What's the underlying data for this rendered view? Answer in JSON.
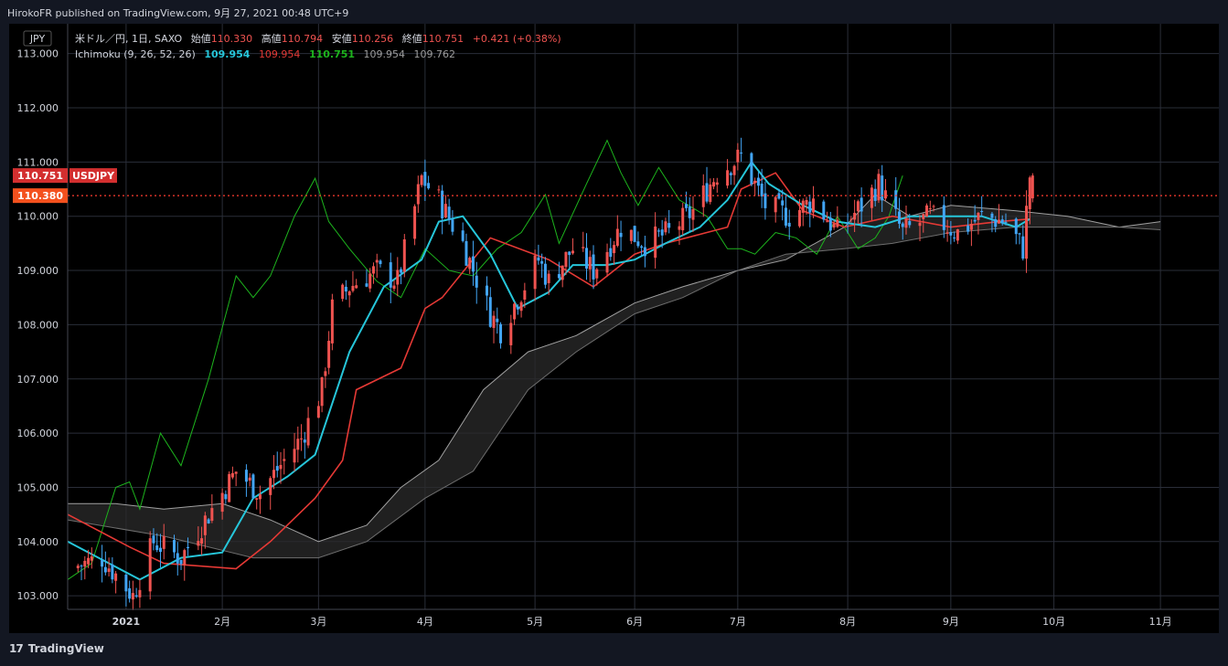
{
  "header": {
    "published": "HirokoFR published on TradingView.com, 9月 27, 2021 00:48 UTC+9"
  },
  "footer": {
    "brand": "TradingView",
    "logo": "17"
  },
  "legend": {
    "currency_button": "JPY",
    "line1": {
      "symbol": "米ドル／円, 1日, SAXO",
      "open_label": "始値",
      "open": "110.330",
      "high_label": "高値",
      "high": "110.794",
      "low_label": "安値",
      "low": "110.256",
      "close_label": "終値",
      "close": "110.751",
      "change": "+0.421 (+0.38%)"
    },
    "line2": {
      "name": "Ichimoku (9, 26, 52, 26)",
      "v1": "109.954",
      "v2": "109.954",
      "v3": "110.751",
      "v4": "109.954",
      "v5": "109.762"
    }
  },
  "price_tags": {
    "last": "110.751",
    "symbol": "USDJPY",
    "dotted": "110.380"
  },
  "colors": {
    "background": "#000000",
    "up": "#ef5350",
    "down": "#42a5f5",
    "tenkan": "#26c6da",
    "kijun": "#e53935",
    "chikou": "#1db41d",
    "span": "#8f8f8f",
    "cloud": "#3a3a3a",
    "grid": "#2a2e39",
    "dotted": "#ff3b30"
  },
  "chart_data": {
    "type": "candlestick",
    "title": "米ドル／円, 1日, SAXO",
    "y_ticks": [
      "103.000",
      "104.000",
      "105.000",
      "106.000",
      "107.000",
      "108.000",
      "109.000",
      "110.000",
      "111.000",
      "112.000",
      "113.000"
    ],
    "ylim": [
      102.75,
      113.55
    ],
    "x_ticks": [
      {
        "label": "2021",
        "date": "2021-01-04"
      },
      {
        "label": "2月",
        "date": "2021-02-01"
      },
      {
        "label": "3月",
        "date": "2021-03-01"
      },
      {
        "label": "4月",
        "date": "2021-04-01"
      },
      {
        "label": "5月",
        "date": "2021-05-03"
      },
      {
        "label": "6月",
        "date": "2021-06-01"
      },
      {
        "label": "7月",
        "date": "2021-07-01"
      },
      {
        "label": "8月",
        "date": "2021-08-02"
      },
      {
        "label": "9月",
        "date": "2021-09-01"
      },
      {
        "label": "10月",
        "date": "2021-10-01"
      },
      {
        "label": "11月",
        "date": "2021-11-01"
      }
    ],
    "xlim": [
      "2020-12-18",
      "2021-11-18"
    ],
    "price_anchors": [
      [
        "2020-12-18",
        103.5
      ],
      [
        "2020-12-28",
        103.7
      ],
      [
        "2021-01-06",
        103.0
      ],
      [
        "2021-01-12",
        104.0
      ],
      [
        "2021-01-20",
        103.7
      ],
      [
        "2021-01-29",
        104.6
      ],
      [
        "2021-02-05",
        105.3
      ],
      [
        "2021-02-12",
        104.9
      ],
      [
        "2021-02-19",
        105.5
      ],
      [
        "2021-02-24",
        105.9
      ],
      [
        "2021-03-02",
        106.8
      ],
      [
        "2021-03-05",
        108.3
      ],
      [
        "2021-03-10",
        108.7
      ],
      [
        "2021-03-18",
        109.0
      ],
      [
        "2021-03-24",
        108.8
      ],
      [
        "2021-03-31",
        110.7
      ],
      [
        "2021-04-05",
        110.3
      ],
      [
        "2021-04-12",
        109.5
      ],
      [
        "2021-04-20",
        108.2
      ],
      [
        "2021-04-23",
        107.9
      ],
      [
        "2021-05-04",
        109.2
      ],
      [
        "2021-05-07",
        108.8
      ],
      [
        "2021-05-14",
        109.4
      ],
      [
        "2021-05-20",
        109.0
      ],
      [
        "2021-05-28",
        109.8
      ],
      [
        "2021-06-04",
        109.5
      ],
      [
        "2021-06-11",
        109.7
      ],
      [
        "2021-06-18",
        110.1
      ],
      [
        "2021-06-25",
        110.8
      ],
      [
        "2021-07-02",
        111.1
      ],
      [
        "2021-07-09",
        110.2
      ],
      [
        "2021-07-16",
        110.0
      ],
      [
        "2021-07-23",
        110.3
      ],
      [
        "2021-07-30",
        109.7
      ],
      [
        "2021-08-06",
        110.2
      ],
      [
        "2021-08-11",
        110.6
      ],
      [
        "2021-08-18",
        109.7
      ],
      [
        "2021-08-26",
        110.0
      ],
      [
        "2021-09-03",
        109.7
      ],
      [
        "2021-09-10",
        110.0
      ],
      [
        "2021-09-17",
        109.9
      ],
      [
        "2021-09-22",
        109.4
      ],
      [
        "2021-09-24",
        110.75
      ]
    ],
    "tenkan": [
      [
        "2020-12-18",
        104.0
      ],
      [
        "2021-01-08",
        103.3
      ],
      [
        "2021-01-20",
        103.7
      ],
      [
        "2021-02-01",
        103.8
      ],
      [
        "2021-02-10",
        104.8
      ],
      [
        "2021-02-20",
        105.2
      ],
      [
        "2021-02-28",
        105.6
      ],
      [
        "2021-03-10",
        107.5
      ],
      [
        "2021-03-20",
        108.7
      ],
      [
        "2021-03-31",
        109.2
      ],
      [
        "2021-04-05",
        109.9
      ],
      [
        "2021-04-12",
        110.0
      ],
      [
        "2021-04-20",
        109.3
      ],
      [
        "2021-04-28",
        108.3
      ],
      [
        "2021-05-07",
        108.6
      ],
      [
        "2021-05-14",
        109.1
      ],
      [
        "2021-05-24",
        109.1
      ],
      [
        "2021-06-01",
        109.2
      ],
      [
        "2021-06-10",
        109.5
      ],
      [
        "2021-06-20",
        109.8
      ],
      [
        "2021-06-28",
        110.3
      ],
      [
        "2021-07-05",
        111.0
      ],
      [
        "2021-07-10",
        110.6
      ],
      [
        "2021-07-20",
        110.2
      ],
      [
        "2021-07-30",
        109.9
      ],
      [
        "2021-08-10",
        109.8
      ],
      [
        "2021-08-20",
        110.0
      ],
      [
        "2021-09-01",
        110.0
      ],
      [
        "2021-09-10",
        110.0
      ],
      [
        "2021-09-20",
        109.8
      ],
      [
        "2021-09-24",
        109.95
      ]
    ],
    "kijun": [
      [
        "2020-12-18",
        104.5
      ],
      [
        "2021-01-05",
        103.9
      ],
      [
        "2021-01-15",
        103.6
      ],
      [
        "2021-02-05",
        103.5
      ],
      [
        "2021-02-15",
        104.0
      ],
      [
        "2021-02-28",
        104.8
      ],
      [
        "2021-03-08",
        105.5
      ],
      [
        "2021-03-12",
        106.8
      ],
      [
        "2021-03-25",
        107.2
      ],
      [
        "2021-04-01",
        108.3
      ],
      [
        "2021-04-06",
        108.5
      ],
      [
        "2021-04-20",
        109.6
      ],
      [
        "2021-05-07",
        109.2
      ],
      [
        "2021-05-20",
        108.7
      ],
      [
        "2021-06-01",
        109.3
      ],
      [
        "2021-06-10",
        109.5
      ],
      [
        "2021-06-22",
        109.7
      ],
      [
        "2021-06-28",
        109.8
      ],
      [
        "2021-07-02",
        110.5
      ],
      [
        "2021-07-12",
        110.8
      ],
      [
        "2021-07-20",
        110.1
      ],
      [
        "2021-08-01",
        109.8
      ],
      [
        "2021-08-15",
        110.0
      ],
      [
        "2021-09-01",
        109.8
      ],
      [
        "2021-09-15",
        109.9
      ],
      [
        "2021-09-24",
        109.95
      ]
    ],
    "chikou": [
      [
        "2020-12-18",
        103.3
      ],
      [
        "2020-12-25",
        103.6
      ],
      [
        "2021-01-01",
        105.0
      ],
      [
        "2021-01-05",
        105.1
      ],
      [
        "2021-01-08",
        104.6
      ],
      [
        "2021-01-14",
        106.0
      ],
      [
        "2021-01-20",
        105.4
      ],
      [
        "2021-01-28",
        107.0
      ],
      [
        "2021-02-05",
        108.9
      ],
      [
        "2021-02-10",
        108.5
      ],
      [
        "2021-02-15",
        108.9
      ],
      [
        "2021-02-22",
        110.0
      ],
      [
        "2021-02-28",
        110.7
      ],
      [
        "2021-03-04",
        109.9
      ],
      [
        "2021-03-10",
        109.4
      ],
      [
        "2021-03-18",
        108.8
      ],
      [
        "2021-03-25",
        108.5
      ],
      [
        "2021-04-01",
        109.4
      ],
      [
        "2021-04-08",
        109.0
      ],
      [
        "2021-04-15",
        108.9
      ],
      [
        "2021-04-22",
        109.4
      ],
      [
        "2021-04-29",
        109.7
      ],
      [
        "2021-05-06",
        110.4
      ],
      [
        "2021-05-10",
        109.5
      ],
      [
        "2021-05-18",
        110.6
      ],
      [
        "2021-05-24",
        111.4
      ],
      [
        "2021-05-28",
        110.8
      ],
      [
        "2021-06-02",
        110.2
      ],
      [
        "2021-06-08",
        110.9
      ],
      [
        "2021-06-14",
        110.3
      ],
      [
        "2021-06-22",
        110.0
      ],
      [
        "2021-06-28",
        109.4
      ],
      [
        "2021-07-02",
        109.4
      ],
      [
        "2021-07-06",
        109.3
      ],
      [
        "2021-07-12",
        109.7
      ],
      [
        "2021-07-18",
        109.6
      ],
      [
        "2021-07-24",
        109.3
      ],
      [
        "2021-07-30",
        110.0
      ],
      [
        "2021-08-05",
        109.4
      ],
      [
        "2021-08-10",
        109.6
      ],
      [
        "2021-08-14",
        110.0
      ],
      [
        "2021-08-18",
        110.75
      ]
    ],
    "span_a": [
      [
        "2020-12-18",
        104.7
      ],
      [
        "2021-01-01",
        104.7
      ],
      [
        "2021-01-15",
        104.6
      ],
      [
        "2021-02-01",
        104.7
      ],
      [
        "2021-02-15",
        104.4
      ],
      [
        "2021-03-01",
        104.0
      ],
      [
        "2021-03-15",
        104.3
      ],
      [
        "2021-03-25",
        105.0
      ],
      [
        "2021-04-05",
        105.5
      ],
      [
        "2021-04-18",
        106.8
      ],
      [
        "2021-05-01",
        107.5
      ],
      [
        "2021-05-15",
        107.8
      ],
      [
        "2021-06-01",
        108.4
      ],
      [
        "2021-06-15",
        108.7
      ],
      [
        "2021-07-01",
        109.0
      ],
      [
        "2021-07-15",
        109.2
      ],
      [
        "2021-08-01",
        109.8
      ],
      [
        "2021-08-10",
        110.4
      ],
      [
        "2021-08-20",
        110.0
      ],
      [
        "2021-09-01",
        110.2
      ],
      [
        "2021-09-20",
        110.1
      ],
      [
        "2021-10-05",
        110.0
      ],
      [
        "2021-10-20",
        109.8
      ],
      [
        "2021-11-01",
        109.9
      ]
    ],
    "span_b": [
      [
        "2020-12-18",
        104.4
      ],
      [
        "2021-01-15",
        104.1
      ],
      [
        "2021-02-10",
        103.7
      ],
      [
        "2021-03-01",
        103.7
      ],
      [
        "2021-03-15",
        104.0
      ],
      [
        "2021-04-01",
        104.8
      ],
      [
        "2021-04-15",
        105.3
      ],
      [
        "2021-05-01",
        106.8
      ],
      [
        "2021-05-15",
        107.5
      ],
      [
        "2021-06-01",
        108.2
      ],
      [
        "2021-06-15",
        108.5
      ],
      [
        "2021-07-01",
        109.0
      ],
      [
        "2021-07-15",
        109.3
      ],
      [
        "2021-08-01",
        109.4
      ],
      [
        "2021-08-15",
        109.5
      ],
      [
        "2021-09-01",
        109.7
      ],
      [
        "2021-09-20",
        109.8
      ],
      [
        "2021-10-05",
        109.8
      ],
      [
        "2021-10-20",
        109.8
      ],
      [
        "2021-11-01",
        109.75
      ]
    ]
  }
}
